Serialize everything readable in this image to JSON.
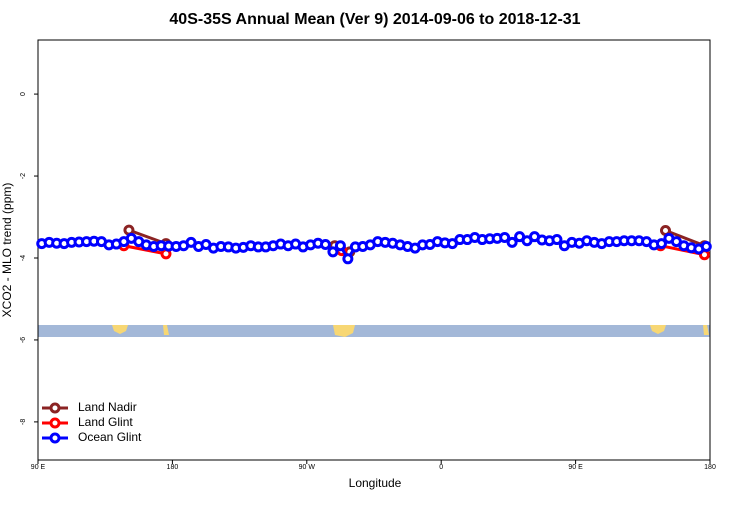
{
  "chart_data": {
    "type": "line",
    "title": "40S-35S Annual Mean (Ver 9)   2014-09-06 to 2018-12-31",
    "x_label": "Longitude",
    "y_label": "XCO2 - MLO trend (ppm)",
    "xlim": [
      90,
      540
    ],
    "ylim": [
      -8.93,
      1.32
    ],
    "xticks": [
      {
        "value": 90,
        "label": "90 E"
      },
      {
        "value": 180,
        "label": "180"
      },
      {
        "value": 270,
        "label": "90 W"
      },
      {
        "value": 360,
        "label": "0"
      },
      {
        "value": 450,
        "label": "90 E"
      },
      {
        "value": 540,
        "label": "180"
      }
    ],
    "yticks": [
      0,
      -2,
      -4,
      -6,
      -8
    ],
    "legend": "bottomleft",
    "series": [
      {
        "name": "Land Nadir",
        "color": "#8b2323",
        "x": [
          150.9,
          175.7,
          288.7,
          298.8,
          510.2,
          536.3
        ],
        "values": [
          -3.32,
          -3.65,
          -3.7,
          -3.85,
          -3.33,
          -3.7
        ]
      },
      {
        "name": "Land Glint",
        "color": "#ff0000",
        "x": [
          147.5,
          175.7,
          293.4,
          506.9,
          536.3
        ],
        "values": [
          -3.7,
          -3.9,
          -3.82,
          -3.7,
          -3.92
        ]
      },
      {
        "name": "Ocean Glint",
        "color": "#0000ff",
        "x": [
          92.5,
          97.5,
          102.5,
          107.5,
          112.5,
          117.5,
          122.5,
          127.5,
          132.5,
          137.5,
          142.5,
          147.5,
          152.5,
          157.5,
          162.5,
          167.5,
          172.5,
          177.5,
          182.5,
          187.5,
          192.5,
          197.5,
          202.5,
          207.5,
          212.5,
          217.5,
          222.5,
          227.5,
          232.5,
          237.5,
          242.5,
          247.5,
          252.5,
          257.5,
          262.5,
          267.5,
          272.5,
          277.5,
          282.5,
          287.5,
          292.5,
          297.5,
          302.5,
          307.5,
          312.5,
          317.5,
          322.5,
          327.5,
          332.5,
          337.5,
          342.5,
          347.5,
          352.5,
          357.5,
          362.5,
          367.5,
          372.5,
          377.5,
          382.5,
          387.5,
          392.5,
          397.5,
          402.5,
          407.5,
          412.5,
          417.5,
          422.5,
          427.5,
          432.5,
          437.5,
          442.5,
          447.5,
          452.5,
          457.5,
          462.5,
          467.5,
          472.5,
          477.5,
          482.5,
          487.5,
          492.5,
          497.5,
          502.5,
          507.5,
          512.5,
          517.5,
          522.5,
          527.5,
          532.5,
          537.5
        ],
        "values": [
          -3.65,
          -3.62,
          -3.64,
          -3.65,
          -3.62,
          -3.61,
          -3.6,
          -3.59,
          -3.6,
          -3.68,
          -3.66,
          -3.6,
          -3.52,
          -3.6,
          -3.68,
          -3.72,
          -3.7,
          -3.71,
          -3.72,
          -3.7,
          -3.62,
          -3.72,
          -3.67,
          -3.76,
          -3.72,
          -3.73,
          -3.76,
          -3.74,
          -3.7,
          -3.73,
          -3.73,
          -3.7,
          -3.66,
          -3.7,
          -3.66,
          -3.73,
          -3.68,
          -3.64,
          -3.67,
          -3.85,
          -3.7,
          -4.02,
          -3.73,
          -3.72,
          -3.68,
          -3.6,
          -3.62,
          -3.64,
          -3.68,
          -3.72,
          -3.76,
          -3.68,
          -3.67,
          -3.6,
          -3.63,
          -3.65,
          -3.55,
          -3.55,
          -3.5,
          -3.55,
          -3.53,
          -3.52,
          -3.5,
          -3.62,
          -3.48,
          -3.58,
          -3.48,
          -3.56,
          -3.58,
          -3.55,
          -3.7,
          -3.62,
          -3.64,
          -3.58,
          -3.62,
          -3.65,
          -3.6,
          -3.6,
          -3.58,
          -3.58,
          -3.58,
          -3.6,
          -3.68,
          -3.65,
          -3.52,
          -3.6,
          -3.7,
          -3.75,
          -3.78,
          -3.72
        ]
      }
    ]
  }
}
